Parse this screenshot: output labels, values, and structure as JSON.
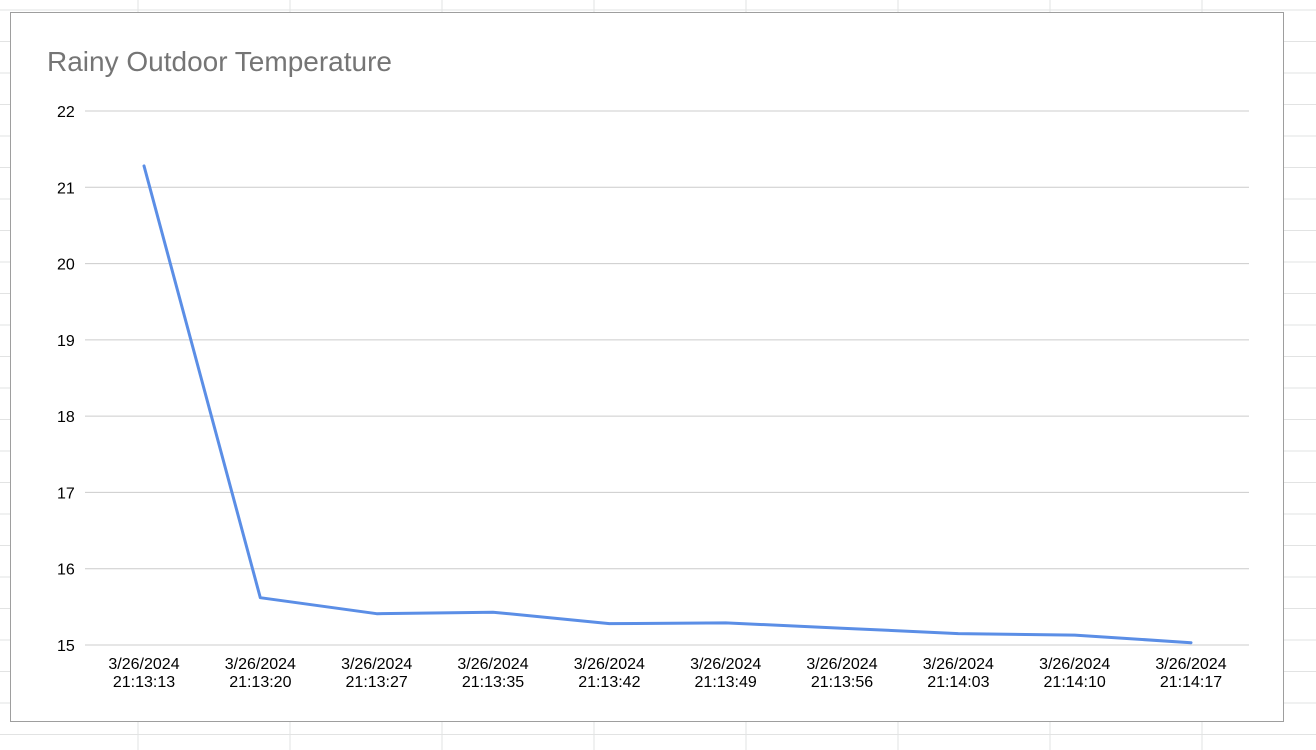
{
  "chart_data": {
    "type": "line",
    "title": "Rainy Outdoor Temperature",
    "xlabel": "",
    "ylabel": "",
    "categories": [
      [
        "3/26/2024",
        "21:13:13"
      ],
      [
        "3/26/2024",
        "21:13:20"
      ],
      [
        "3/26/2024",
        "21:13:27"
      ],
      [
        "3/26/2024",
        "21:13:35"
      ],
      [
        "3/26/2024",
        "21:13:42"
      ],
      [
        "3/26/2024",
        "21:13:49"
      ],
      [
        "3/26/2024",
        "21:13:56"
      ],
      [
        "3/26/2024",
        "21:14:03"
      ],
      [
        "3/26/2024",
        "21:14:10"
      ],
      [
        "3/26/2024",
        "21:14:17"
      ]
    ],
    "series": [
      {
        "values": [
          21.28,
          15.62,
          15.41,
          15.43,
          15.28,
          15.29,
          15.22,
          15.15,
          15.13,
          15.03
        ],
        "color": "#5b8ee6"
      }
    ],
    "ylim": [
      15,
      22
    ],
    "yticks": [
      15,
      16,
      17,
      18,
      19,
      20,
      21,
      22
    ],
    "grid": true,
    "legend": "none",
    "gridColor": "#cccccc",
    "background": "#ffffff"
  }
}
